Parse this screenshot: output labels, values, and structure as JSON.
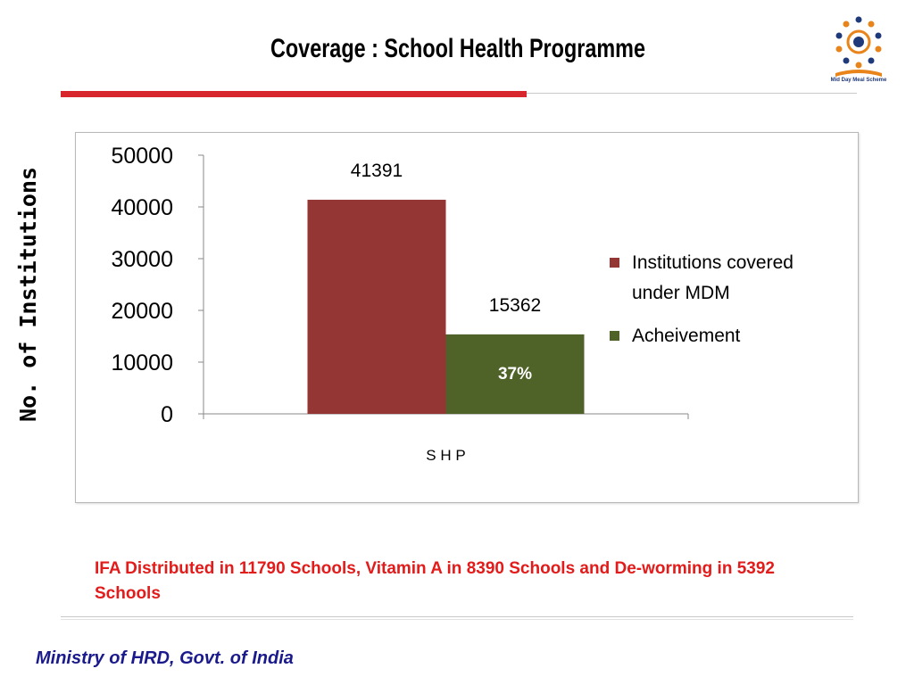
{
  "slide": {
    "title": "Coverage : School Health Programme",
    "y_axis_title": "No. of Institutions",
    "note": "IFA Distributed in 11790 Schools, Vitamin A in 8390 Schools and De-worming in  5392 Schools",
    "footer": "Ministry of HRD, Govt. of India",
    "logo": {
      "icon": "mid-day-meal-logo",
      "caption": "Mid Day Meal Scheme",
      "accent_colors": [
        "#1f3a7a",
        "#e8841a"
      ]
    }
  },
  "colors": {
    "title_rule": "#d7262c",
    "note_text": "#e21b1b",
    "footer_text": "#1a1a8c"
  },
  "chart_data": {
    "type": "bar",
    "categories": [
      "S H P"
    ],
    "series": [
      {
        "name": "Institutions covered under MDM",
        "values": [
          41391
        ],
        "color": "#943634",
        "data_label": "41391"
      },
      {
        "name": "Acheivement",
        "values": [
          15362
        ],
        "color": "#4f6228",
        "data_label": "15362",
        "inner_label": "37%"
      }
    ],
    "ylim": [
      0,
      50000
    ],
    "y_ticks": [
      "0",
      "10000",
      "20000",
      "30000",
      "40000",
      "50000"
    ],
    "grid": false,
    "legend": "right"
  }
}
